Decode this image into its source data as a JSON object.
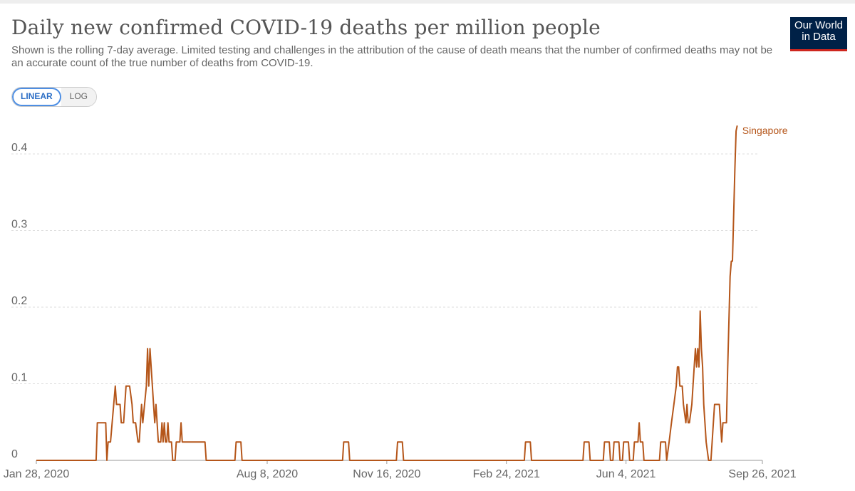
{
  "header": {
    "title": "Daily new confirmed COVID-19 deaths per million people",
    "subtitle": "Shown is the rolling 7-day average. Limited testing and challenges in the attribution of the cause of death means that the number of confirmed deaths may not be an accurate count of the true number of deaths from COVID-19.",
    "logo_line1": "Our World",
    "logo_line2": "in Data"
  },
  "controls": {
    "linear_label": "LINEAR",
    "log_label": "LOG"
  },
  "colors": {
    "series": "#b5561a",
    "grid": "#dddddd"
  },
  "chart_data": {
    "type": "line",
    "title": "Daily new confirmed COVID-19 deaths per million people",
    "xlabel": "",
    "ylabel": "",
    "ylim": [
      0,
      0.44
    ],
    "yticks": [
      {
        "value": 0,
        "label": "0"
      },
      {
        "value": 0.1,
        "label": "0.1"
      },
      {
        "value": 0.2,
        "label": "0.2"
      },
      {
        "value": 0.3,
        "label": "0.3"
      },
      {
        "value": 0.4,
        "label": "0.4"
      }
    ],
    "xticks": [
      {
        "day": 0,
        "label": "Jan 28, 2020"
      },
      {
        "day": 193,
        "label": "Aug 8, 2020"
      },
      {
        "day": 293,
        "label": "Nov 16, 2020"
      },
      {
        "day": 393,
        "label": "Feb 24, 2021"
      },
      {
        "day": 493,
        "label": "Jun 4, 2021"
      },
      {
        "day": 607,
        "label": "Sep 26, 2021"
      }
    ],
    "x_domain_days": [
      0,
      607
    ],
    "grid": true,
    "series": [
      {
        "name": "Singapore",
        "x_unit": "days since Jan 28, 2020",
        "points": [
          [
            0,
            0
          ],
          [
            50,
            0
          ],
          [
            51,
            0.049
          ],
          [
            58,
            0.049
          ],
          [
            59,
            0
          ],
          [
            60,
            0.024
          ],
          [
            62,
            0.024
          ],
          [
            66,
            0.097
          ],
          [
            67,
            0.073
          ],
          [
            70,
            0.073
          ],
          [
            71,
            0.049
          ],
          [
            73,
            0.049
          ],
          [
            75,
            0.097
          ],
          [
            78,
            0.097
          ],
          [
            80,
            0.073
          ],
          [
            81,
            0.049
          ],
          [
            83,
            0.049
          ],
          [
            85,
            0.024
          ],
          [
            86,
            0.024
          ],
          [
            88,
            0.073
          ],
          [
            89,
            0.049
          ],
          [
            92,
            0.097
          ],
          [
            93,
            0.146
          ],
          [
            94,
            0.097
          ],
          [
            95,
            0.146
          ],
          [
            98,
            0.073
          ],
          [
            99,
            0.049
          ],
          [
            100,
            0.073
          ],
          [
            102,
            0.024
          ],
          [
            104,
            0.024
          ],
          [
            105,
            0.049
          ],
          [
            106,
            0.024
          ],
          [
            107,
            0.049
          ],
          [
            108,
            0.024
          ],
          [
            109,
            0.024
          ],
          [
            110,
            0.049
          ],
          [
            111,
            0.024
          ],
          [
            113,
            0.024
          ],
          [
            114,
            0
          ],
          [
            116,
            0
          ],
          [
            117,
            0.024
          ],
          [
            120,
            0.024
          ],
          [
            121,
            0.049
          ],
          [
            122,
            0.024
          ],
          [
            141,
            0.024
          ],
          [
            142,
            0
          ],
          [
            166,
            0
          ],
          [
            167,
            0.024
          ],
          [
            171,
            0.024
          ],
          [
            172,
            0
          ],
          [
            256,
            0
          ],
          [
            257,
            0.024
          ],
          [
            261,
            0.024
          ],
          [
            262,
            0
          ],
          [
            301,
            0
          ],
          [
            302,
            0.024
          ],
          [
            306,
            0.024
          ],
          [
            307,
            0
          ],
          [
            408,
            0
          ],
          [
            409,
            0.024
          ],
          [
            413,
            0.024
          ],
          [
            414,
            0
          ],
          [
            457,
            0
          ],
          [
            458,
            0.024
          ],
          [
            462,
            0.024
          ],
          [
            463,
            0
          ],
          [
            474,
            0
          ],
          [
            475,
            0.024
          ],
          [
            479,
            0.024
          ],
          [
            480,
            0
          ],
          [
            482,
            0
          ],
          [
            483,
            0.024
          ],
          [
            487,
            0.024
          ],
          [
            488,
            0
          ],
          [
            490,
            0
          ],
          [
            491,
            0.024
          ],
          [
            495,
            0.024
          ],
          [
            496,
            0
          ],
          [
            499,
            0
          ],
          [
            500,
            0.024
          ],
          [
            503,
            0.024
          ],
          [
            504,
            0.049
          ],
          [
            505,
            0.024
          ],
          [
            507,
            0.024
          ],
          [
            508,
            0
          ],
          [
            521,
            0
          ],
          [
            522,
            0.024
          ],
          [
            526,
            0.024
          ],
          [
            527,
            0
          ],
          [
            529,
            0.024
          ],
          [
            531,
            0.049
          ],
          [
            533,
            0.073
          ],
          [
            535,
            0.097
          ],
          [
            536,
            0.122
          ],
          [
            537,
            0.122
          ],
          [
            538,
            0.097
          ],
          [
            540,
            0.097
          ],
          [
            541,
            0.073
          ],
          [
            543,
            0.049
          ],
          [
            544,
            0.073
          ],
          [
            545,
            0.049
          ],
          [
            546,
            0.049
          ],
          [
            548,
            0.073
          ],
          [
            549,
            0.097
          ],
          [
            550,
            0.122
          ],
          [
            551,
            0.146
          ],
          [
            552,
            0.122
          ],
          [
            553,
            0.146
          ],
          [
            554,
            0.122
          ],
          [
            555,
            0.195
          ],
          [
            556,
            0.146
          ],
          [
            557,
            0.122
          ],
          [
            558,
            0.073
          ],
          [
            559,
            0.049
          ],
          [
            560,
            0.024
          ],
          [
            562,
            0
          ],
          [
            564,
            0
          ],
          [
            565,
            0.024
          ],
          [
            566,
            0.049
          ],
          [
            567,
            0.073
          ],
          [
            571,
            0.073
          ],
          [
            572,
            0.049
          ],
          [
            573,
            0.024
          ],
          [
            574,
            0.049
          ],
          [
            576,
            0.049
          ],
          [
            577,
            0.049
          ],
          [
            578,
            0.12
          ],
          [
            580,
            0.24
          ],
          [
            581,
            0.26
          ],
          [
            582,
            0.26
          ],
          [
            583,
            0.32
          ],
          [
            584,
            0.38
          ],
          [
            585,
            0.43
          ],
          [
            586,
            0.437
          ]
        ]
      }
    ]
  }
}
